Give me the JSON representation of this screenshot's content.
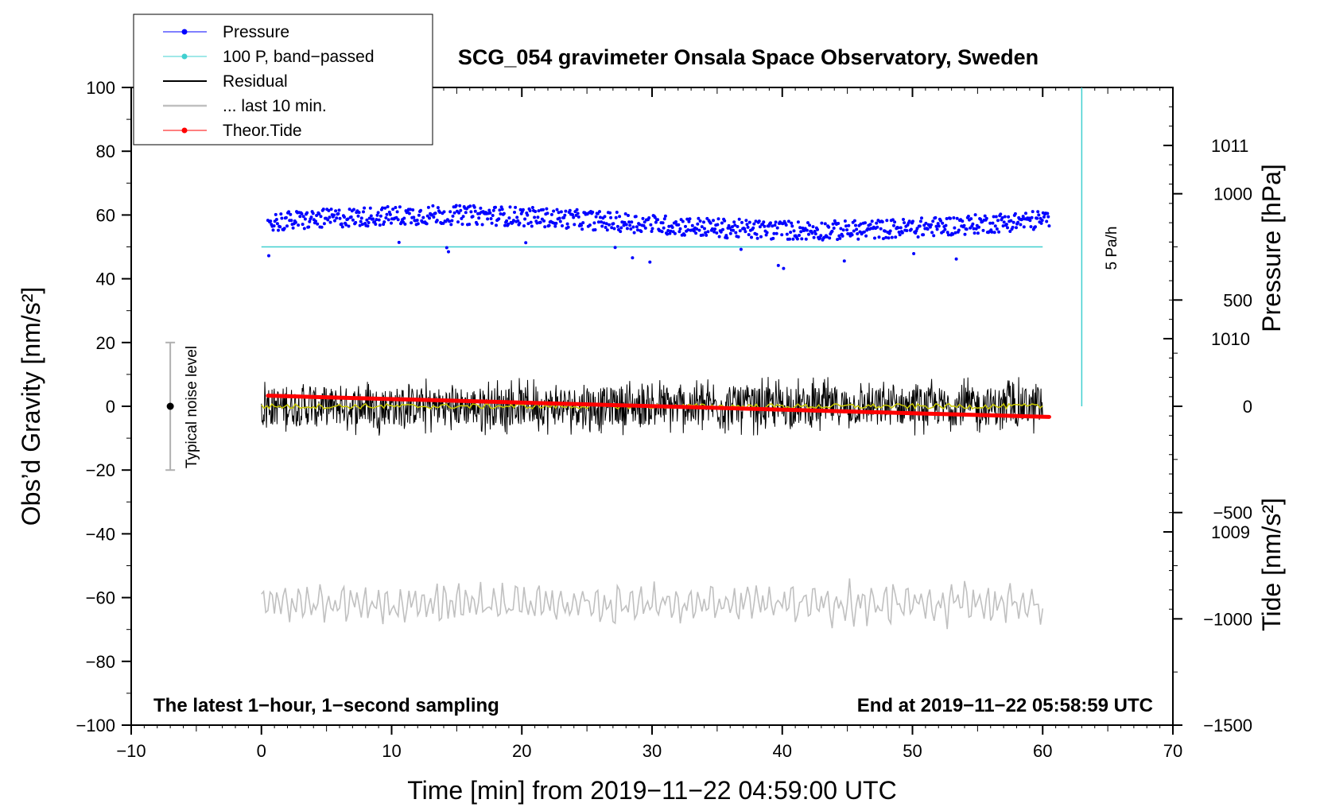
{
  "chart_data": {
    "type": "line",
    "title": "SCG_054 gravimeter Onsala Space Observatory, Sweden",
    "xlabel": "Time [min] from 2019−11−22 04:59:00 UTC",
    "ylabel": "Obs’d Gravity [nm/s²]",
    "ylabel_pressure": "Pressure [hPa]",
    "ylabel_tide": "Tide [nm/s²]",
    "xlim": [
      -10,
      70
    ],
    "ylim": [
      -100,
      100
    ],
    "pressure_ylim": [
      1008.0,
      1011.3
    ],
    "tide_ylim": [
      -1500,
      1500
    ],
    "x_ticks": [
      "−10",
      "0",
      "10",
      "20",
      "30",
      "40",
      "50",
      "60",
      "70"
    ],
    "x_tick_values": [
      -10,
      0,
      10,
      20,
      30,
      40,
      50,
      60,
      70
    ],
    "y_ticks": [
      "100",
      "80",
      "60",
      "40",
      "20",
      "0",
      "−20",
      "−40",
      "−60",
      "−80",
      "−100"
    ],
    "y_tick_values": [
      100,
      80,
      60,
      40,
      20,
      0,
      -20,
      -40,
      -60,
      -80,
      -100
    ],
    "pressure_ticks": [
      "1011",
      "1010",
      "1009"
    ],
    "pressure_tick_values": [
      1011,
      1010,
      1009
    ],
    "tide_ticks": [
      "1000",
      "500",
      "0",
      "−500",
      "−1000",
      "−1500"
    ],
    "tide_tick_values": [
      1000,
      500,
      0,
      -500,
      -1000,
      -1500
    ],
    "legend": {
      "position": "top-left",
      "entries": [
        {
          "label": "Pressure",
          "color": "#0000ff",
          "marker": true
        },
        {
          "label": "100 P, band−passed",
          "color": "#40d0d0",
          "marker": true
        },
        {
          "label": "Residual",
          "color": "#000000",
          "marker": false
        },
        {
          "label": "... last 10 min.",
          "color": "#c0c0c0",
          "marker": false
        },
        {
          "label": "Theor.Tide",
          "color": "#ff0000",
          "marker": true
        }
      ]
    },
    "series": [
      {
        "name": "Pressure",
        "axis": "pressure",
        "color": "#0000ff",
        "x_range": [
          0.5,
          60.5
        ],
        "level_hPa": 1010.6,
        "spread_hPa": 0.05
      },
      {
        "name": "100 P, band−passed",
        "axis": "gravity",
        "color": "#40d0d0",
        "x_range": [
          0,
          60
        ],
        "value": 50
      },
      {
        "name": "Residual",
        "axis": "gravity",
        "color": "#000000",
        "x_range": [
          0,
          60
        ],
        "center": 0,
        "amplitude": 8
      },
      {
        "name": "... last 10 min.",
        "axis": "gravity",
        "color": "#c0c0c0",
        "x_range": [
          0,
          60
        ],
        "center": -62,
        "amplitude": 6
      },
      {
        "name": "Theor.Tide",
        "axis": "tide",
        "color": "#ff0000",
        "x": [
          0.5,
          60.5
        ],
        "y": [
          50,
          -50
        ]
      }
    ],
    "smoothed_residual": {
      "color": "#c8c800",
      "value": 0
    },
    "noise_bar": {
      "label": "Typical noise level",
      "x": -7,
      "y": 0,
      "ylow": -20,
      "yhigh": 20
    },
    "rate_bar": {
      "label": "5 Pa/h",
      "x": 63,
      "ylow": 0,
      "yhigh": 100,
      "color": "#40d0d0"
    },
    "annotations": {
      "left": "The latest 1−hour, 1−second sampling",
      "right": "End at 2019−11−22 05:58:59 UTC"
    },
    "grid": false
  }
}
